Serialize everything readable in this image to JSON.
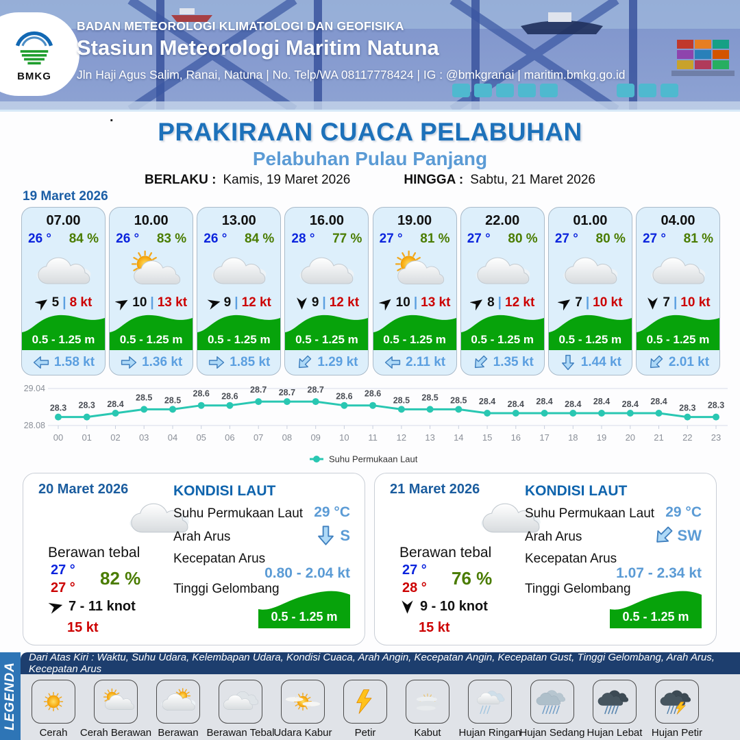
{
  "header": {
    "logo_text": "BMKG",
    "agency": "BADAN METEOROLOGI KLIMATOLOGI DAN GEOFISIKA",
    "station": "Stasiun Meteorologi Maritim Natuna",
    "address": "Jln Haji Agus Salim, Ranai, Natuna  | No. Telp/WA 08117778424 | IG : @bmkgranai | maritim.bmkg.go.id"
  },
  "title": {
    "dot": ".",
    "main": "PRAKIRAAN CUACA PELABUHAN",
    "subtitle": "Pelabuhan Pulau Panjang",
    "valid_from_label": "BERLAKU :",
    "valid_from": "Kamis, 19 Maret 2026",
    "valid_to_label": "HINGGA :",
    "valid_to": "Sabtu, 21 Maret 2026"
  },
  "day1": {
    "date": "19 Maret 2026",
    "cards": [
      {
        "time": "07.00",
        "temp": "26 °",
        "humidity": "84 %",
        "icon": "cloud",
        "wind": "5",
        "gust": "8 kt",
        "wind_deg": -35,
        "wave": "0.5 - 1.25 m",
        "current": "1.58 kt",
        "current_deg": 180
      },
      {
        "time": "10.00",
        "temp": "26 °",
        "humidity": "83 %",
        "icon": "sun-cloud",
        "wind": "10",
        "gust": "13 kt",
        "wind_deg": -30,
        "wave": "0.5 - 1.25 m",
        "current": "1.36 kt",
        "current_deg": 0
      },
      {
        "time": "13.00",
        "temp": "26 °",
        "humidity": "84 %",
        "icon": "cloud",
        "wind": "9",
        "gust": "12 kt",
        "wind_deg": -15,
        "wave": "0.5 - 1.25 m",
        "current": "1.85 kt",
        "current_deg": 0
      },
      {
        "time": "16.00",
        "temp": "28 °",
        "humidity": "77 %",
        "icon": "cloud",
        "wind": "9",
        "gust": "12 kt",
        "wind_deg": 90,
        "wave": "0.5 - 1.25 m",
        "current": "1.29 kt",
        "current_deg": 135
      },
      {
        "time": "19.00",
        "temp": "27 °",
        "humidity": "81 %",
        "icon": "sun-cloud",
        "wind": "10",
        "gust": "13 kt",
        "wind_deg": -40,
        "wave": "0.5 - 1.25 m",
        "current": "2.11 kt",
        "current_deg": 180
      },
      {
        "time": "22.00",
        "temp": "27 °",
        "humidity": "80 %",
        "icon": "cloud",
        "wind": "8",
        "gust": "12 kt",
        "wind_deg": -35,
        "wave": "0.5 - 1.25 m",
        "current": "1.35 kt",
        "current_deg": 135
      },
      {
        "time": "01.00",
        "temp": "27 °",
        "humidity": "80 %",
        "icon": "cloud",
        "wind": "7",
        "gust": "10 kt",
        "wind_deg": -35,
        "wave": "0.5 - 1.25 m",
        "current": "1.44 kt",
        "current_deg": 90
      },
      {
        "time": "04.00",
        "temp": "27 °",
        "humidity": "81 %",
        "icon": "cloud",
        "wind": "7",
        "gust": "10 kt",
        "wind_deg": 90,
        "wave": "0.5 - 1.25 m",
        "current": "2.01 kt",
        "current_deg": 135
      }
    ]
  },
  "chart_data": {
    "type": "line",
    "x": [
      "00",
      "01",
      "02",
      "03",
      "04",
      "05",
      "06",
      "07",
      "08",
      "09",
      "10",
      "11",
      "12",
      "13",
      "14",
      "15",
      "16",
      "17",
      "18",
      "19",
      "20",
      "21",
      "22",
      "23"
    ],
    "series": [
      {
        "name": "Suhu Permukaan Laut",
        "values": [
          28.3,
          28.3,
          28.4,
          28.5,
          28.5,
          28.6,
          28.6,
          28.7,
          28.7,
          28.7,
          28.6,
          28.6,
          28.5,
          28.5,
          28.5,
          28.4,
          28.4,
          28.4,
          28.4,
          28.4,
          28.4,
          28.4,
          28.3,
          28.3
        ]
      }
    ],
    "ylim": [
      28.08,
      29.04
    ],
    "yticks": [
      29.04,
      28.08
    ],
    "grid": true,
    "legend_position": "bottom",
    "line_color": "#29c7b2",
    "xlabel": "",
    "ylabel": ""
  },
  "day_cards": [
    {
      "date": "20 Maret 2026",
      "icon": "cloud",
      "condition": "Berawan tebal",
      "temp_min": "27 °",
      "temp_max": "27 °",
      "humidity": "82 %",
      "wind_deg": -15,
      "wind_range": "7  - 11 knot",
      "gust": "15 kt",
      "sea": {
        "heading": "KONDISI LAUT",
        "sst_label": "Suhu Permukaan Laut",
        "sst": "29 °C",
        "dir_label": "Arah Arus",
        "dir": "S",
        "dir_deg": 90,
        "speed_label": "Kecepatan Arus",
        "speed": "0.80  - 2.04 kt",
        "wave_label": "Tinggi Gelombang",
        "wave": "0.5 - 1.25 m"
      }
    },
    {
      "date": "21 Maret 2026",
      "icon": "cloud",
      "condition": "Berawan tebal",
      "temp_min": "27 °",
      "temp_max": "28 °",
      "humidity": "76 %",
      "wind_deg": 90,
      "wind_range": "9  - 10 knot",
      "gust": "15 kt",
      "sea": {
        "heading": "KONDISI LAUT",
        "sst_label": "Suhu Permukaan Laut",
        "sst": "29 °C",
        "dir_label": "Arah Arus",
        "dir": "SW",
        "dir_deg": 135,
        "speed_label": "Kecepatan Arus",
        "speed": "1.07 - 2.34 kt",
        "wave_label": "Tinggi Gelombang",
        "wave": "0.5 - 1.25 m"
      }
    }
  ],
  "legend": {
    "sidebar": "LEGENDA",
    "caption": "Dari Atas Kiri : Waktu, Suhu Udara, Kelembapan Udara, Kondisi Cuaca, Arah Angin, Kecepatan Angin, Kecepatan Gust, Tinggi Gelombang, Arah Arus, Kecepatan Arus",
    "items": [
      {
        "label": "Cerah",
        "icon": "sun"
      },
      {
        "label": "Cerah Berawan",
        "icon": "sun-cloud"
      },
      {
        "label": "Berawan",
        "icon": "cloud-sun"
      },
      {
        "label": "Berawan Tebal",
        "icon": "clouds"
      },
      {
        "label": "Udara Kabur",
        "icon": "haze"
      },
      {
        "label": "Petir",
        "icon": "lightning"
      },
      {
        "label": "Kabut",
        "icon": "fog"
      },
      {
        "label": "Hujan Ringan",
        "icon": "rain-light"
      },
      {
        "label": "Hujan Sedang",
        "icon": "rain-medium"
      },
      {
        "label": "Hujan Lebat",
        "icon": "rain-heavy"
      },
      {
        "label": "Hujan Petir",
        "icon": "storm"
      }
    ]
  },
  "colors": {
    "accent_blue": "#1d71ba",
    "light_blue": "#5b9bd5",
    "wave_green": "#07a30b",
    "humidity_green": "#4a7c00",
    "temp_blue": "#0b24dd",
    "alert_red": "#cc0000",
    "chart_teal": "#29c7b2",
    "legend_bar": "#1d3e6e",
    "legend_side": "#2e75b6"
  }
}
